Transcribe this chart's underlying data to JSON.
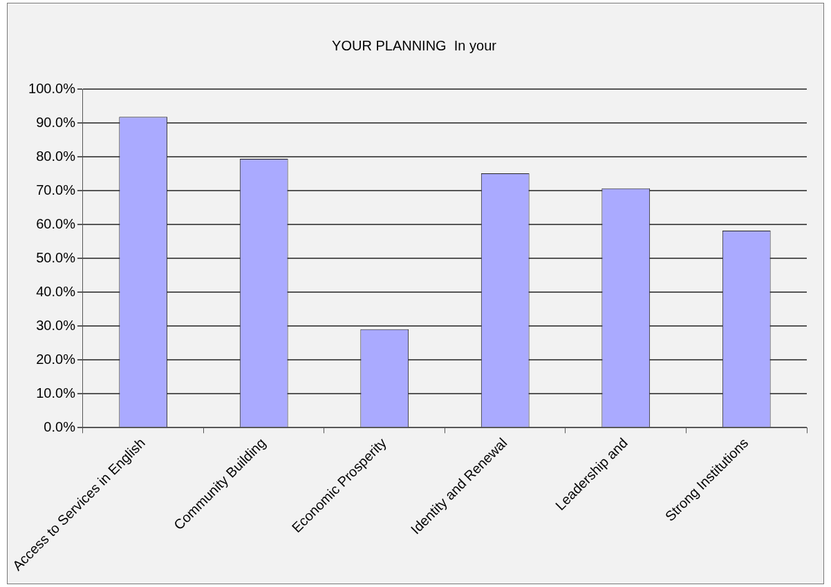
{
  "chart_data": {
    "type": "bar",
    "title": "YOUR PLANNING  In your",
    "categories": [
      "Access to Services in English",
      "Community Building",
      "Economic Prosperity",
      "Identity and Renewal",
      "Leadership and",
      "Strong Institutions"
    ],
    "values": [
      91.8,
      79.4,
      29.1,
      75.1,
      70.7,
      58.2
    ],
    "color": "#aaaaff",
    "ylim": [
      0,
      100
    ],
    "yticks": [
      {
        "value": 0,
        "label": "0.0%"
      },
      {
        "value": 10,
        "label": "10.0%"
      },
      {
        "value": 20,
        "label": "20.0%"
      },
      {
        "value": 30,
        "label": "30.0%"
      },
      {
        "value": 40,
        "label": "40.0%"
      },
      {
        "value": 50,
        "label": "50.0%"
      },
      {
        "value": 60,
        "label": "60.0%"
      },
      {
        "value": 70,
        "label": "70.0%"
      },
      {
        "value": 80,
        "label": "80.0%"
      },
      {
        "value": 90,
        "label": "90.0%"
      },
      {
        "value": 100,
        "label": "100.0%"
      }
    ],
    "grid": "y",
    "legend": false
  }
}
